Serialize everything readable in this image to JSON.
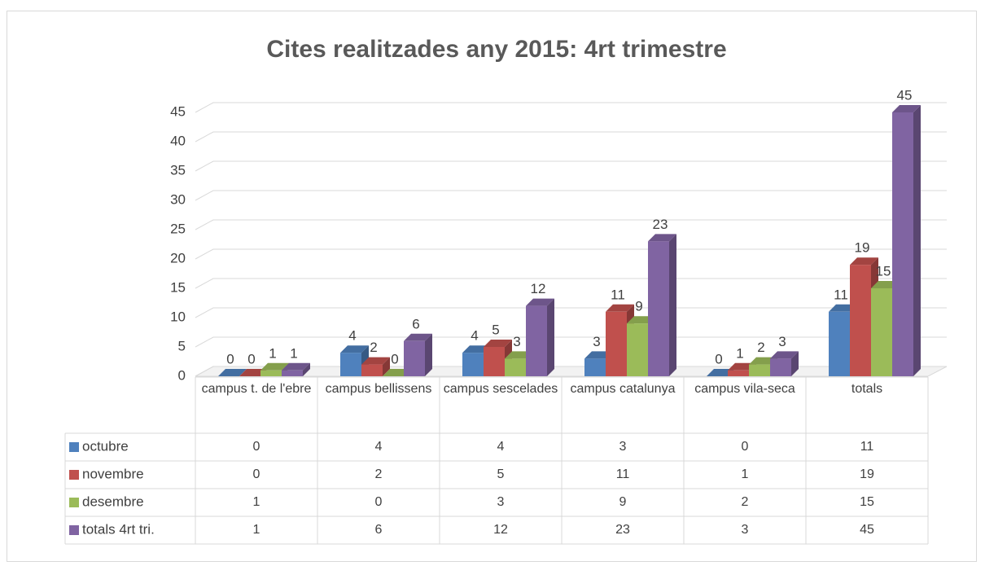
{
  "chart_data": {
    "type": "bar3d",
    "title": "Cites realitzades any 2015: 4rt trimestre",
    "categories": [
      "campus t. de l'ebre",
      "campus bellissens",
      "campus sescelades",
      "campus catalunya",
      "campus vila-seca",
      "totals"
    ],
    "series": [
      {
        "name": "octubre",
        "color": "#4f81bd",
        "values": [
          0,
          4,
          4,
          3,
          0,
          11
        ]
      },
      {
        "name": "novembre",
        "color": "#c0504d",
        "values": [
          0,
          2,
          5,
          11,
          1,
          19
        ]
      },
      {
        "name": "desembre",
        "color": "#9bbb59",
        "values": [
          1,
          0,
          3,
          9,
          2,
          15
        ]
      },
      {
        "name": "totals 4rt tri.",
        "color": "#8064a2",
        "values": [
          1,
          6,
          12,
          23,
          3,
          45
        ]
      }
    ],
    "ylim": [
      0,
      45
    ],
    "yticks": [
      0,
      5,
      10,
      15,
      20,
      25,
      30,
      35,
      40,
      45
    ],
    "grid": true,
    "data_table": true
  }
}
